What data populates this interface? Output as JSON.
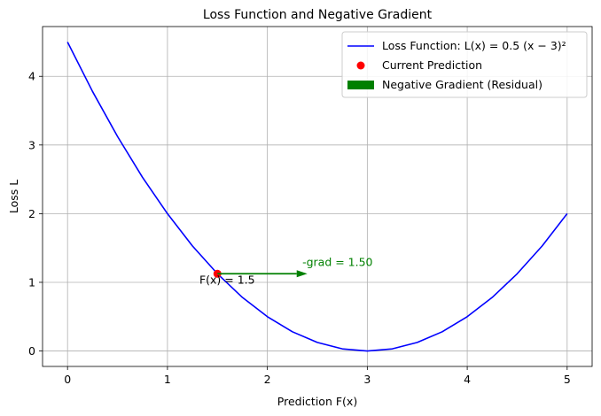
{
  "chart_data": {
    "type": "line",
    "title": "Loss Function and Negative Gradient",
    "xlabel": "Prediction F(x)",
    "ylabel": "Loss L",
    "xlim": [
      -0.25,
      5.25
    ],
    "ylim": [
      -0.225,
      4.725
    ],
    "xticks": [
      0,
      1,
      2,
      3,
      4,
      5
    ],
    "yticks": [
      0,
      1,
      2,
      3,
      4
    ],
    "grid": true,
    "legend_position": "top-right",
    "series": [
      {
        "name": "Loss Function: L(x) = 0.5 (x − 3)²",
        "kind": "line",
        "color": "#0000ff",
        "x": [
          0,
          0.25,
          0.5,
          0.75,
          1,
          1.25,
          1.5,
          1.75,
          2,
          2.25,
          2.5,
          2.75,
          3,
          3.25,
          3.5,
          3.75,
          4,
          4.25,
          4.5,
          4.75,
          5
        ],
        "y": [
          4.5,
          3.78,
          3.125,
          2.53,
          2.0,
          1.53,
          1.125,
          0.78,
          0.5,
          0.28,
          0.125,
          0.031,
          0,
          0.031,
          0.125,
          0.28,
          0.5,
          0.78,
          1.125,
          1.53,
          2.0
        ]
      },
      {
        "name": "Current Prediction",
        "kind": "point",
        "color": "#ff0000",
        "x": [
          1.5
        ],
        "y": [
          1.125
        ]
      },
      {
        "name": "Negative Gradient (Residual)",
        "kind": "arrow",
        "color": "#008000",
        "from": [
          1.5,
          1.125
        ],
        "to": [
          2.4,
          1.125
        ]
      }
    ],
    "annotations": [
      {
        "id": "point-label",
        "text": "F(x) = 1.5",
        "x": 1.32,
        "y": 0.98,
        "color": "#000000"
      },
      {
        "id": "grad-label",
        "text": "-grad = 1.50",
        "x": 2.35,
        "y": 1.24,
        "color": "#008000"
      }
    ]
  }
}
